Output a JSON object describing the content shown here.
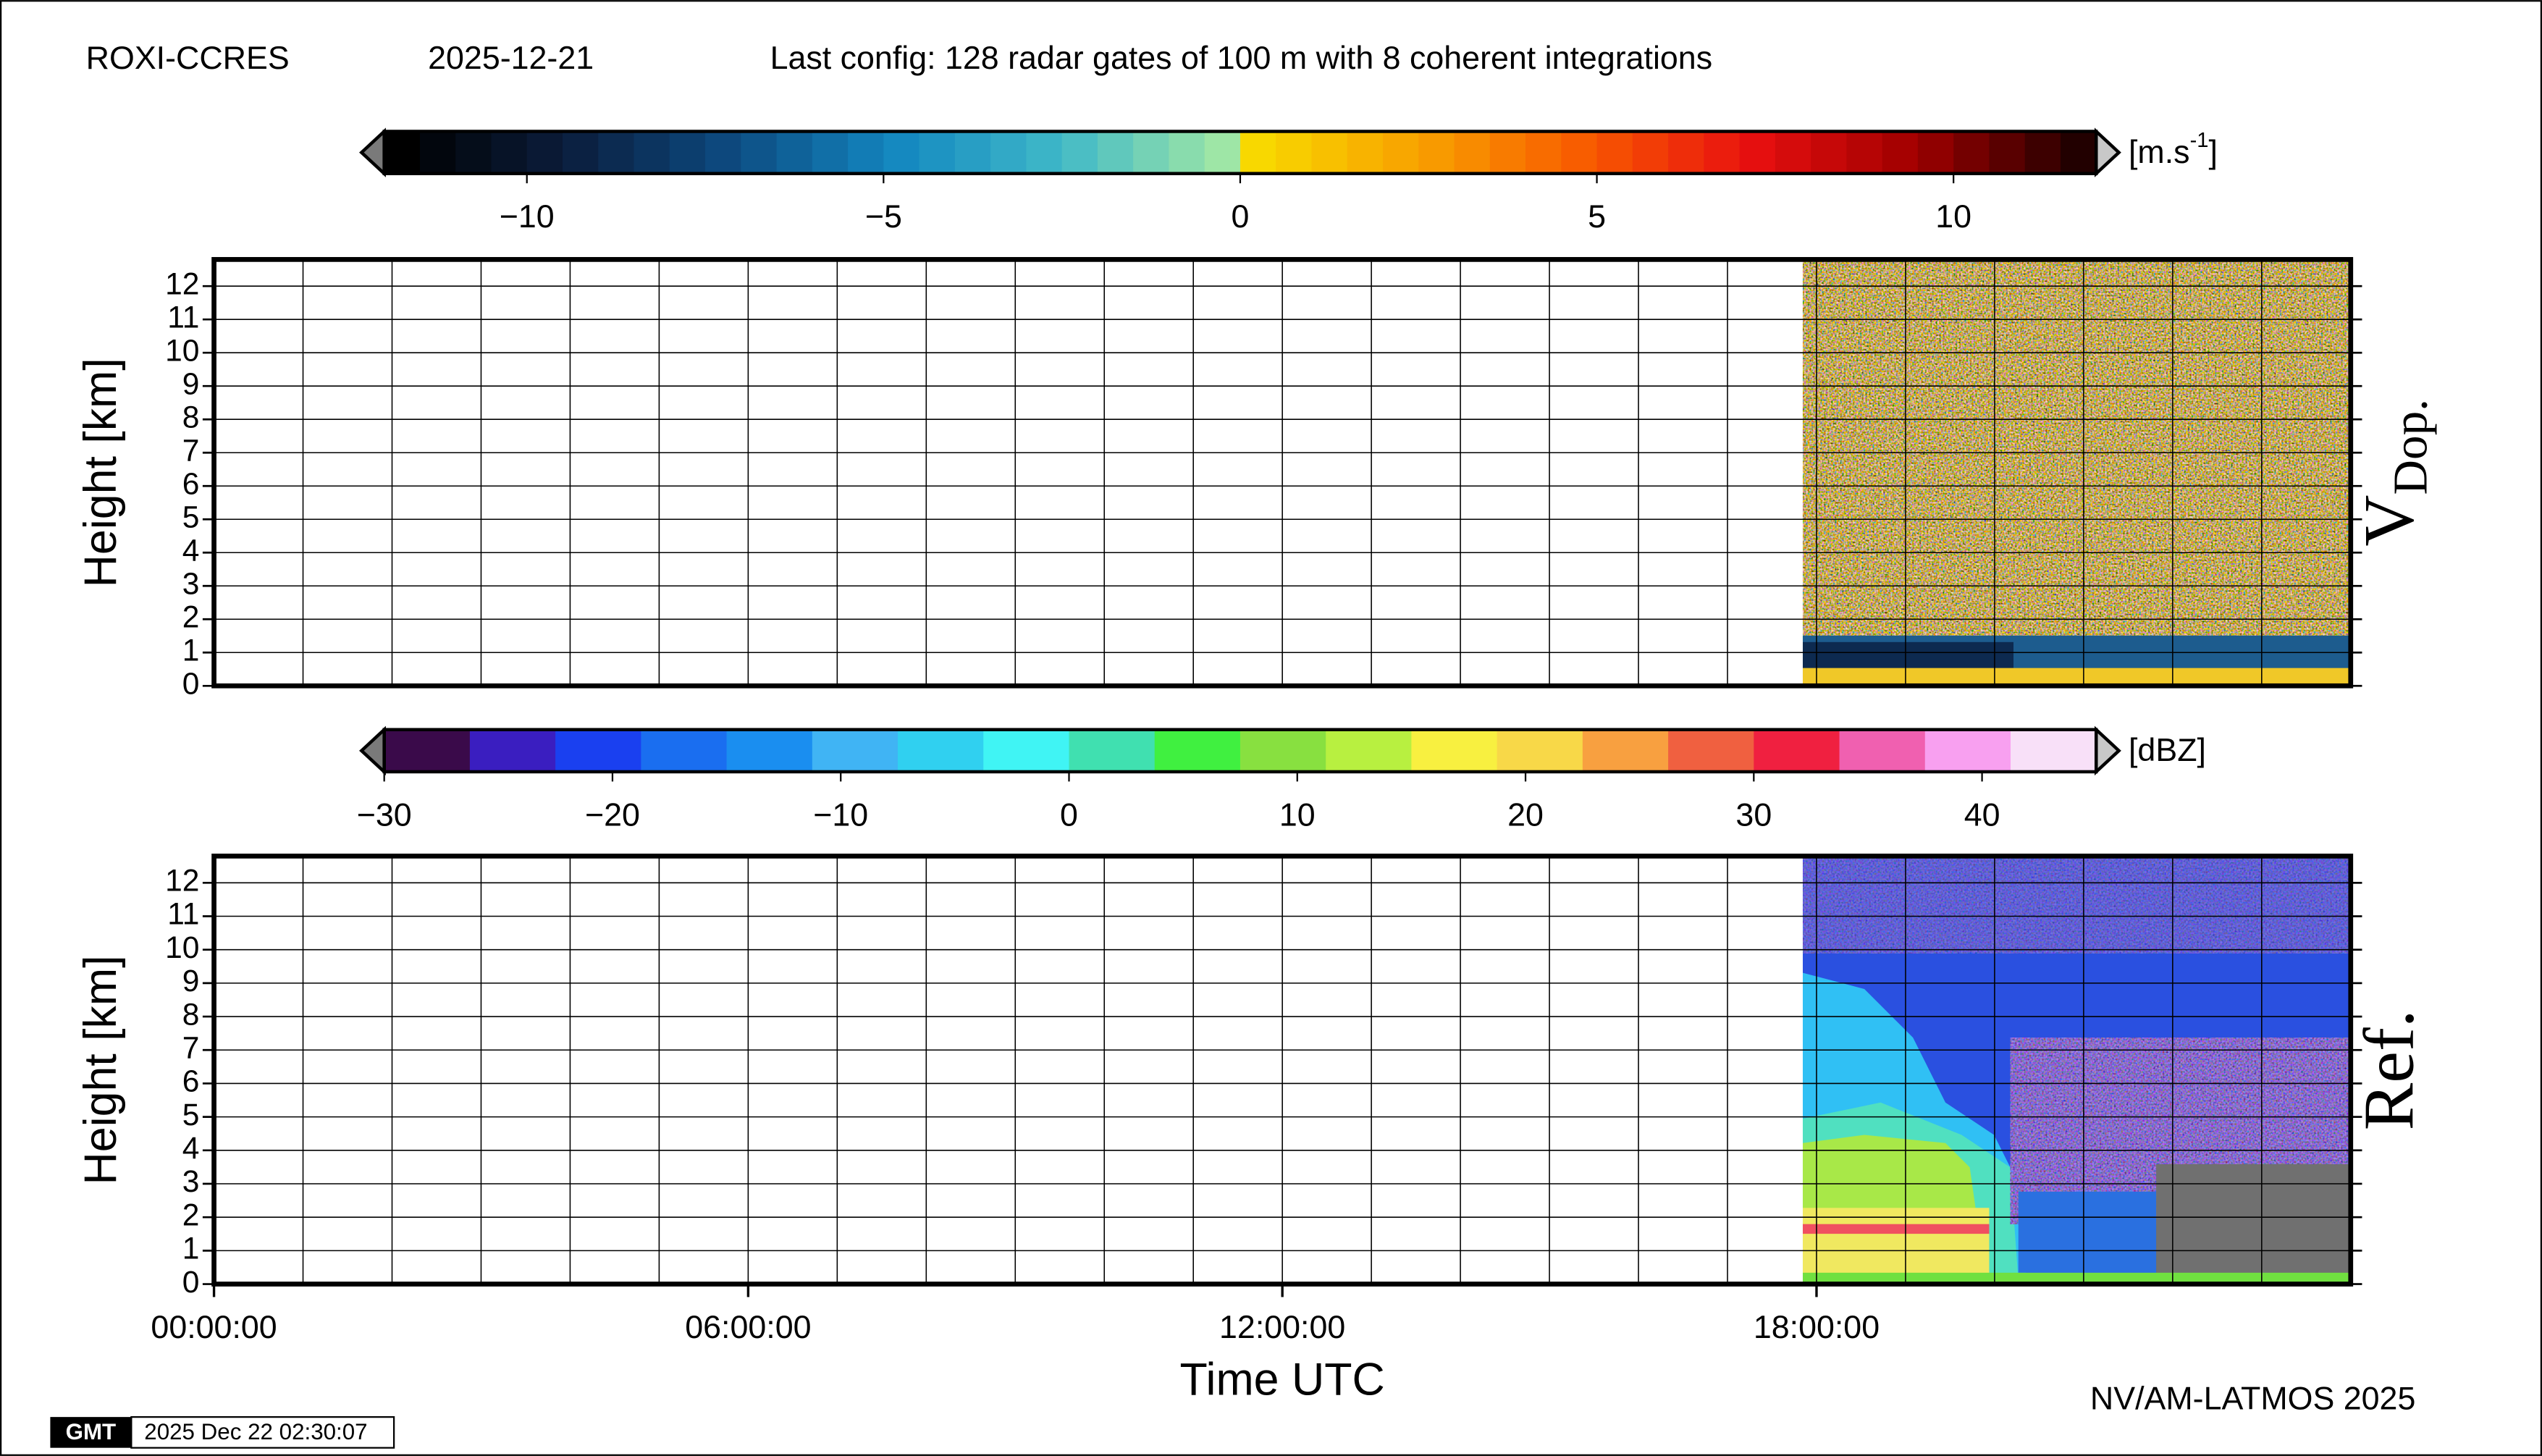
{
  "header": {
    "station": "ROXI-CCRES",
    "date": "2025-12-21",
    "config": "Last config: 128 radar gates of 100 m with 8 coherent integrations",
    "credit": "NV/AM-LATMOS 2025",
    "logo": "GMT",
    "timestamp": "2025 Dec 22 02:30:07"
  },
  "chart_data": [
    {
      "type": "heatmap",
      "label": "V",
      "label_sub": "Dop.",
      "ylabel": "Height [km]",
      "xlim": [
        0,
        24
      ],
      "ylim": [
        0,
        12.8
      ],
      "yticks": [
        0,
        1,
        2,
        3,
        4,
        5,
        6,
        7,
        8,
        9,
        10,
        11,
        12
      ],
      "xgrid": [
        0,
        1,
        2,
        3,
        4,
        5,
        6,
        7,
        8,
        9,
        10,
        11,
        12,
        13,
        14,
        15,
        16,
        17,
        18,
        19,
        20,
        21,
        22,
        23,
        24
      ],
      "grid": true,
      "colorbar": {
        "lim": [
          -12,
          12
        ],
        "steps": 48,
        "colors": [
          [
            "#000000",
            "#0b1d3c",
            "#0d4a80",
            "#1387c0",
            "#3fb8c8",
            "#9ee6a6"
          ],
          [
            "#f8d800",
            "#f8a000",
            "#f85a00",
            "#e81010",
            "#a00000",
            "#220000"
          ]
        ],
        "ticks": [
          {
            "value": -10,
            "label": "−10"
          },
          {
            "value": -5,
            "label": "−5"
          },
          0,
          5,
          10
        ],
        "unit": "[m.s",
        "unit_exponent": "-1",
        "unit_close": "]"
      }
    },
    {
      "type": "heatmap",
      "label": "Ref.",
      "ylabel": "Height [km]",
      "xlim": [
        0,
        24
      ],
      "ylim": [
        0,
        12.8
      ],
      "yticks": [
        0,
        1,
        2,
        3,
        4,
        5,
        6,
        7,
        8,
        9,
        10,
        11,
        12
      ],
      "xgrid": [
        0,
        1,
        2,
        3,
        4,
        5,
        6,
        7,
        8,
        9,
        10,
        11,
        12,
        13,
        14,
        15,
        16,
        17,
        18,
        19,
        20,
        21,
        22,
        23,
        24
      ],
      "grid": true,
      "xticks": [
        {
          "value": 0,
          "label": "00:00:00"
        },
        {
          "value": 6,
          "label": "06:00:00"
        },
        {
          "value": 12,
          "label": "12:00:00"
        },
        {
          "value": 18,
          "label": "18:00:00"
        }
      ],
      "xlabel": "Time UTC",
      "colorbar": {
        "lim": [
          -30,
          45
        ],
        "colors": [
          "#3a0a4a",
          "#3a1ec0",
          "#1a40f0",
          "#1a6ef0",
          "#1a8ef0",
          "#40b4f4",
          "#30d0f0",
          "#40f4f4",
          "#40e0b0",
          "#40f040",
          "#88e040",
          "#b8f040",
          "#f8f040",
          "#f8d848",
          "#f8a040",
          "#f06040",
          "#f02040",
          "#f060b0",
          "#f8a0f0",
          "#f8e0f8"
        ],
        "ticks": [
          {
            "value": -30,
            "label": "−30"
          },
          {
            "value": -20,
            "label": "−20"
          },
          {
            "value": -10,
            "label": "−10"
          },
          0,
          10,
          20,
          30,
          40
        ],
        "unit": "[dBZ]"
      }
    }
  ]
}
